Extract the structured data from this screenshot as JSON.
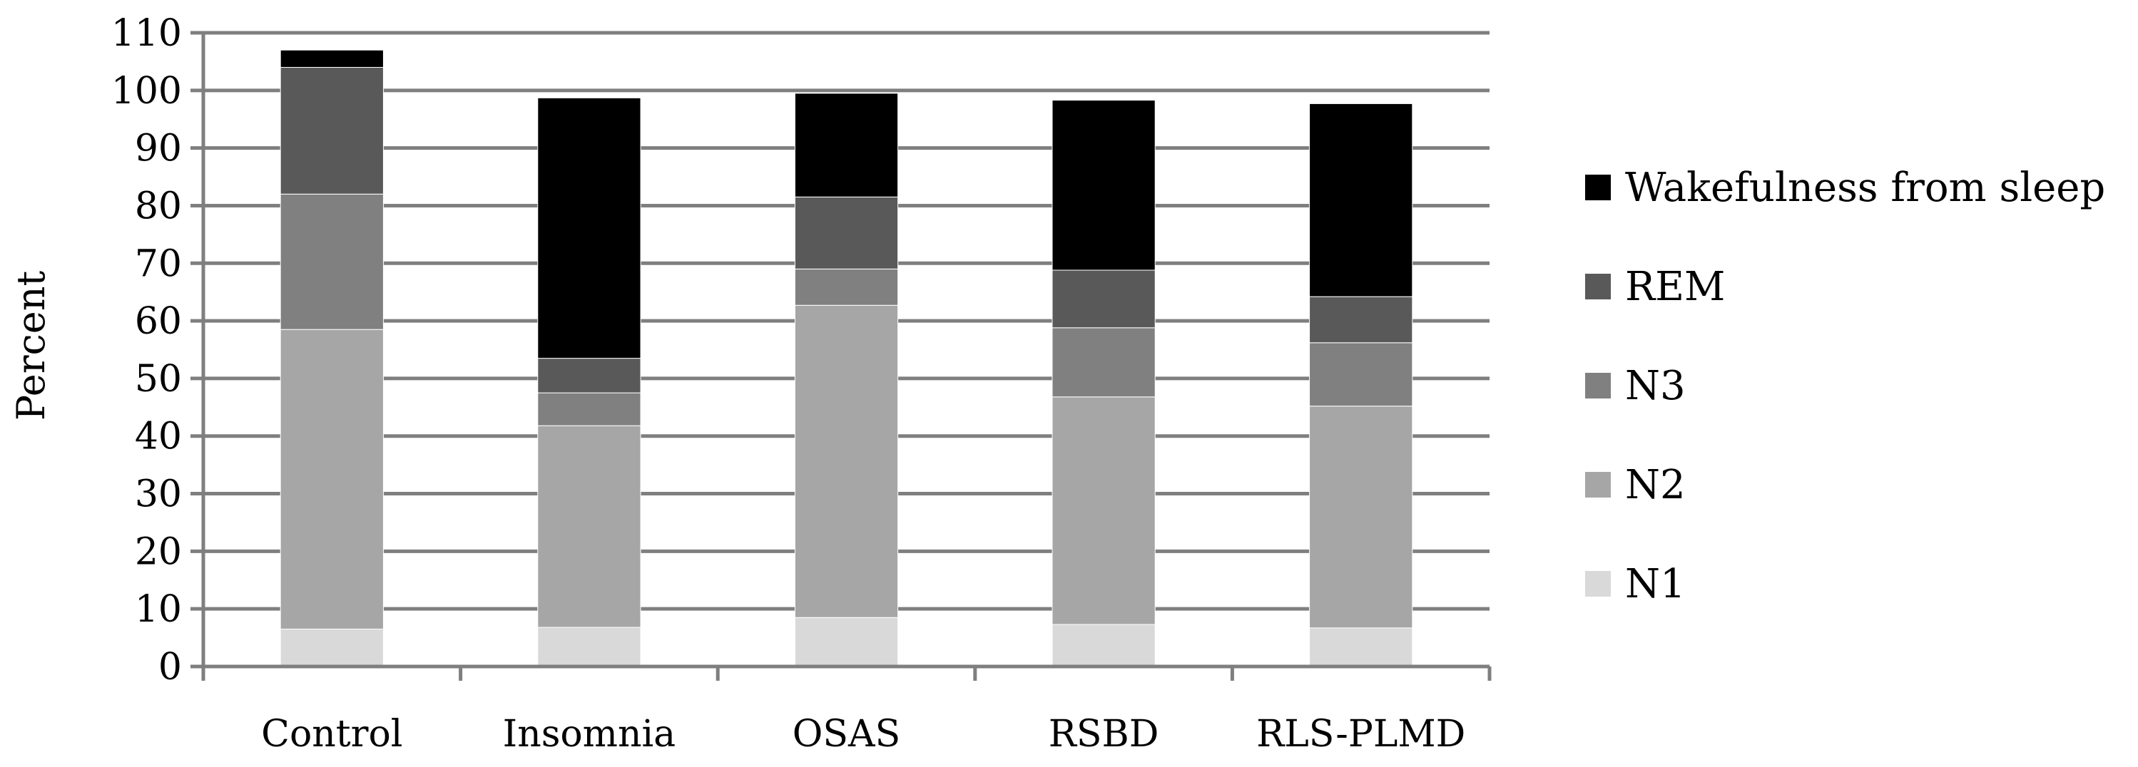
{
  "chart_data": {
    "type": "bar",
    "stacked": true,
    "categories": [
      "Control",
      "Insomnia",
      "OSAS",
      "RSBD",
      "RLS-PLMD"
    ],
    "series": [
      {
        "name": "N1",
        "color": "#d9d9d9",
        "values": [
          6.5,
          6.8,
          8.5,
          7.3,
          6.7
        ]
      },
      {
        "name": "N2",
        "color": "#a6a6a6",
        "values": [
          52.0,
          35.0,
          54.2,
          39.5,
          38.5
        ]
      },
      {
        "name": "N3",
        "color": "#808080",
        "values": [
          23.5,
          5.7,
          6.3,
          12.0,
          11.0
        ]
      },
      {
        "name": "REM",
        "color": "#595959",
        "values": [
          22.0,
          6.0,
          12.5,
          10.0,
          8.0
        ]
      },
      {
        "name": "Wakefulness from sleep",
        "color": "#000000",
        "values": [
          3.0,
          45.2,
          18.0,
          29.5,
          33.5
        ]
      }
    ],
    "xlabel": "",
    "ylabel": "Percent",
    "ylim": [
      0,
      110
    ],
    "yticks": [
      0,
      10,
      20,
      30,
      40,
      50,
      60,
      70,
      80,
      90,
      100,
      110
    ],
    "grid": "horizontal",
    "legend_position": "right",
    "legend_order": [
      "Wakefulness from sleep",
      "REM",
      "N3",
      "N2",
      "N1"
    ],
    "gridline_color": "#7f7f7f",
    "axis_color": "#7f7f7f"
  }
}
